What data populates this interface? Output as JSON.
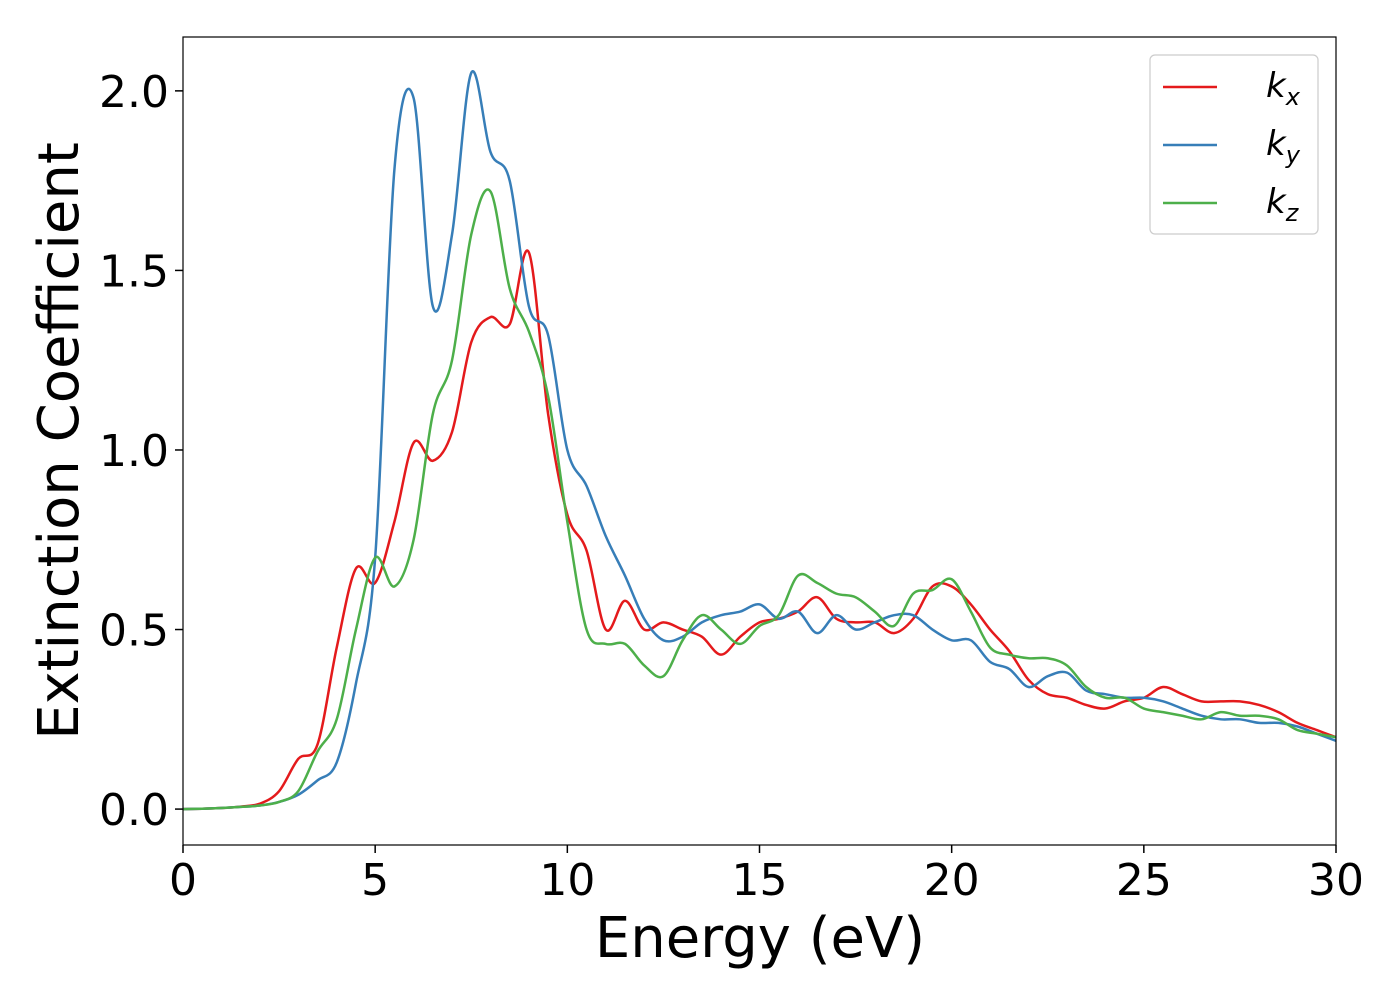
{
  "chart_data": {
    "type": "line",
    "xlabel": "Energy (eV)",
    "ylabel": "Extinction Coefficient",
    "x": [
      0,
      0.5,
      1,
      1.5,
      2,
      2.5,
      3,
      3.5,
      4,
      4.5,
      5,
      5.5,
      6,
      6.5,
      7,
      7.5,
      8,
      8.5,
      9,
      9.5,
      10,
      10.5,
      11,
      11.5,
      12,
      12.5,
      13,
      13.5,
      14,
      14.5,
      15,
      15.5,
      16,
      16.5,
      17,
      17.5,
      18,
      18.5,
      19,
      19.5,
      20,
      20.5,
      21,
      21.5,
      22,
      22.5,
      23,
      23.5,
      24,
      24.5,
      25,
      25.5,
      26,
      26.5,
      27,
      27.5,
      28,
      28.5,
      29,
      29.5,
      30
    ],
    "series": [
      {
        "name": "k_x",
        "color": "#e41a1c",
        "values": [
          0,
          0.001,
          0.003,
          0.007,
          0.015,
          0.05,
          0.14,
          0.18,
          0.45,
          0.67,
          0.63,
          0.8,
          1.02,
          0.97,
          1.05,
          1.3,
          1.37,
          1.35,
          1.55,
          1.1,
          0.82,
          0.72,
          0.5,
          0.58,
          0.5,
          0.52,
          0.5,
          0.48,
          0.43,
          0.48,
          0.52,
          0.53,
          0.55,
          0.59,
          0.53,
          0.52,
          0.52,
          0.49,
          0.53,
          0.62,
          0.62,
          0.57,
          0.5,
          0.44,
          0.36,
          0.32,
          0.31,
          0.29,
          0.28,
          0.3,
          0.31,
          0.34,
          0.32,
          0.3,
          0.3,
          0.3,
          0.29,
          0.27,
          0.24,
          0.22,
          0.2
        ]
      },
      {
        "name": "k_y",
        "color": "#377eb8",
        "values": [
          0,
          0.001,
          0.003,
          0.006,
          0.01,
          0.02,
          0.04,
          0.08,
          0.13,
          0.35,
          0.7,
          1.78,
          1.98,
          1.4,
          1.6,
          2.05,
          1.83,
          1.75,
          1.4,
          1.32,
          1.0,
          0.9,
          0.76,
          0.65,
          0.53,
          0.47,
          0.48,
          0.52,
          0.54,
          0.55,
          0.57,
          0.53,
          0.55,
          0.49,
          0.54,
          0.5,
          0.52,
          0.54,
          0.54,
          0.5,
          0.47,
          0.47,
          0.41,
          0.39,
          0.34,
          0.37,
          0.38,
          0.33,
          0.32,
          0.31,
          0.31,
          0.3,
          0.28,
          0.26,
          0.25,
          0.25,
          0.24,
          0.24,
          0.23,
          0.21,
          0.19
        ]
      },
      {
        "name": "k_z",
        "color": "#4daf4a",
        "values": [
          0,
          0.001,
          0.003,
          0.006,
          0.01,
          0.02,
          0.05,
          0.16,
          0.25,
          0.5,
          0.7,
          0.62,
          0.75,
          1.1,
          1.25,
          1.6,
          1.72,
          1.45,
          1.33,
          1.15,
          0.8,
          0.5,
          0.46,
          0.46,
          0.4,
          0.37,
          0.47,
          0.54,
          0.5,
          0.46,
          0.51,
          0.54,
          0.65,
          0.63,
          0.6,
          0.59,
          0.55,
          0.51,
          0.6,
          0.61,
          0.64,
          0.55,
          0.45,
          0.43,
          0.42,
          0.42,
          0.4,
          0.34,
          0.31,
          0.31,
          0.28,
          0.27,
          0.26,
          0.25,
          0.27,
          0.26,
          0.26,
          0.25,
          0.22,
          0.21,
          0.2
        ]
      }
    ],
    "xlim": [
      0,
      30
    ],
    "xticks": [
      0,
      5,
      10,
      15,
      20,
      25,
      30
    ],
    "ylim": [
      -0.1,
      2.15
    ],
    "yticks": [
      {
        "value": 0,
        "label": "0.0"
      },
      {
        "value": 0.5,
        "label": "0.5"
      },
      {
        "value": 1,
        "label": "1.0"
      },
      {
        "value": 1.5,
        "label": "1.5"
      },
      {
        "value": 2,
        "label": "2.0"
      }
    ],
    "legend": "upper right"
  }
}
